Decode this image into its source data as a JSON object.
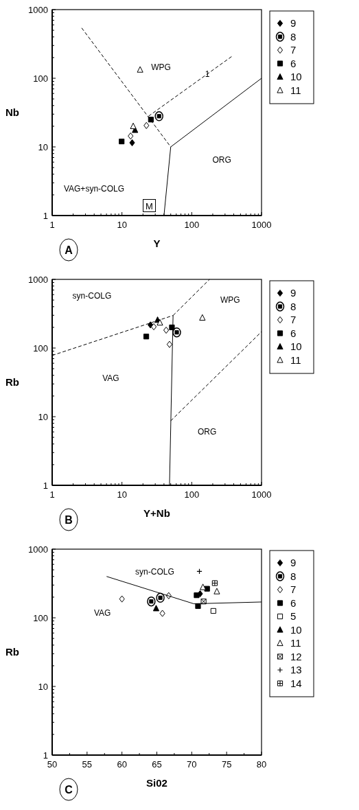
{
  "chart_data": [
    {
      "type": "scatter",
      "xlabel": "Y",
      "ylabel": "Nb",
      "log": "xy",
      "legend": "right",
      "xlim": [
        1,
        1000
      ],
      "ylim": [
        1,
        1000
      ],
      "xticks": [
        1,
        {
          "value": 2,
          "label": null
        },
        {
          "value": 3,
          "label": null
        },
        {
          "value": 4,
          "label": null
        },
        {
          "value": 5,
          "label": null
        },
        {
          "value": 6,
          "label": null
        },
        {
          "value": 7,
          "label": null
        },
        {
          "value": 8,
          "label": null
        },
        {
          "value": 9,
          "label": null
        },
        10,
        {
          "value": 20,
          "label": null
        },
        {
          "value": 30,
          "label": null
        },
        {
          "value": 40,
          "label": null
        },
        {
          "value": 50,
          "label": null
        },
        {
          "value": 60,
          "label": null
        },
        {
          "value": 70,
          "label": null
        },
        {
          "value": 80,
          "label": null
        },
        {
          "value": 90,
          "label": null
        },
        100,
        {
          "value": 200,
          "label": null
        },
        {
          "value": 300,
          "label": null
        },
        {
          "value": 400,
          "label": null
        },
        {
          "value": 500,
          "label": null
        },
        {
          "value": 600,
          "label": null
        },
        {
          "value": 700,
          "label": null
        },
        {
          "value": 800,
          "label": null
        },
        {
          "value": 900,
          "label": null
        },
        1000
      ],
      "yticks": [
        1,
        {
          "value": 2,
          "label": null
        },
        {
          "value": 3,
          "label": null
        },
        {
          "value": 4,
          "label": null
        },
        {
          "value": 5,
          "label": null
        },
        {
          "value": 6,
          "label": null
        },
        {
          "value": 7,
          "label": null
        },
        {
          "value": 8,
          "label": null
        },
        {
          "value": 9,
          "label": null
        },
        10,
        {
          "value": 20,
          "label": null
        },
        {
          "value": 30,
          "label": null
        },
        {
          "value": 40,
          "label": null
        },
        {
          "value": 50,
          "label": null
        },
        {
          "value": 60,
          "label": null
        },
        {
          "value": 70,
          "label": null
        },
        {
          "value": 80,
          "label": null
        },
        {
          "value": 90,
          "label": null
        },
        100,
        {
          "value": 200,
          "label": null
        },
        {
          "value": 300,
          "label": null
        },
        {
          "value": 400,
          "label": null
        },
        {
          "value": 500,
          "label": null
        },
        {
          "value": 600,
          "label": null
        },
        {
          "value": 700,
          "label": null
        },
        {
          "value": 800,
          "label": null
        },
        {
          "value": 900,
          "label": null
        },
        1000
      ],
      "series": [
        {
          "name": "9",
          "color": "#000000",
          "marker": "diamond",
          "x": [
            14
          ],
          "values": [
            11.5
          ]
        },
        {
          "name": "8",
          "color": "#000000",
          "marker": "circled-square",
          "x": [
            34
          ],
          "values": [
            28
          ]
        },
        {
          "name": "7",
          "color": "#000000",
          "marker": "diamond-open",
          "x": [
            13.3,
            22.4
          ],
          "values": [
            14.4,
            20.5
          ]
        },
        {
          "name": "6",
          "color": "#000000",
          "marker": "square",
          "x": [
            9.9,
            26
          ],
          "values": [
            12,
            25
          ]
        },
        {
          "name": "10",
          "color": "#000000",
          "marker": "triangle",
          "x": [
            15.4
          ],
          "values": [
            17.6
          ]
        },
        {
          "name": "11",
          "color": "#000000",
          "marker": "triangle-open",
          "x": [
            14.5,
            18.2
          ],
          "values": [
            20,
            133
          ]
        },
        {
          "type": "line",
          "color": "#000000",
          "line_style": "dashed",
          "x": [
            2.65,
            50
          ],
          "values": [
            540,
            10
          ]
        },
        {
          "type": "line",
          "color": "#000000",
          "line_style": "solid",
          "x": [
            40,
            50
          ],
          "values": [
            1,
            10
          ]
        },
        {
          "type": "line",
          "color": "#000000",
          "line_style": "solid",
          "x": [
            50,
            1000
          ],
          "values": [
            10,
            100
          ]
        },
        {
          "type": "line",
          "color": "#000000",
          "line_style": "dashed",
          "x": [
            24,
            380
          ],
          "values": [
            28,
            210
          ]
        }
      ],
      "annotations": [
        "WPG",
        "ORG",
        "VAG+syn-COLG",
        {
          "text": "1",
          "x": 167,
          "y": 116
        },
        "M",
        "A"
      ]
    },
    {
      "type": "scatter",
      "xlabel": "Y+Nb",
      "ylabel": "Rb",
      "log": "xy",
      "legend": "right",
      "xlim": [
        1,
        1000
      ],
      "ylim": [
        1,
        1000
      ],
      "xticks": [
        1,
        {
          "value": 2,
          "label": null
        },
        {
          "value": 3,
          "label": null
        },
        {
          "value": 4,
          "label": null
        },
        {
          "value": 5,
          "label": null
        },
        {
          "value": 6,
          "label": null
        },
        {
          "value": 7,
          "label": null
        },
        {
          "value": 8,
          "label": null
        },
        {
          "value": 9,
          "label": null
        },
        10,
        {
          "value": 20,
          "label": null
        },
        {
          "value": 30,
          "label": null
        },
        {
          "value": 40,
          "label": null
        },
        {
          "value": 50,
          "label": null
        },
        {
          "value": 60,
          "label": null
        },
        {
          "value": 70,
          "label": null
        },
        {
          "value": 80,
          "label": null
        },
        {
          "value": 90,
          "label": null
        },
        100,
        {
          "value": 200,
          "label": null
        },
        {
          "value": 300,
          "label": null
        },
        {
          "value": 400,
          "label": null
        },
        {
          "value": 500,
          "label": null
        },
        {
          "value": 600,
          "label": null
        },
        {
          "value": 700,
          "label": null
        },
        {
          "value": 800,
          "label": null
        },
        {
          "value": 900,
          "label": null
        },
        1000
      ],
      "yticks": [
        1,
        {
          "value": 2,
          "label": null
        },
        {
          "value": 3,
          "label": null
        },
        {
          "value": 4,
          "label": null
        },
        {
          "value": 5,
          "label": null
        },
        {
          "value": 6,
          "label": null
        },
        {
          "value": 7,
          "label": null
        },
        {
          "value": 8,
          "label": null
        },
        {
          "value": 9,
          "label": null
        },
        10,
        {
          "value": 20,
          "label": null
        },
        {
          "value": 30,
          "label": null
        },
        {
          "value": 40,
          "label": null
        },
        {
          "value": 50,
          "label": null
        },
        {
          "value": 60,
          "label": null
        },
        {
          "value": 70,
          "label": null
        },
        {
          "value": 80,
          "label": null
        },
        {
          "value": 90,
          "label": null
        },
        100,
        {
          "value": 200,
          "label": null
        },
        {
          "value": 300,
          "label": null
        },
        {
          "value": 400,
          "label": null
        },
        {
          "value": 500,
          "label": null
        },
        {
          "value": 600,
          "label": null
        },
        {
          "value": 700,
          "label": null
        },
        {
          "value": 800,
          "label": null
        },
        {
          "value": 900,
          "label": null
        },
        1000
      ],
      "series": [
        {
          "name": "9",
          "color": "#000000",
          "marker": "diamond",
          "x": [
            25.6
          ],
          "values": [
            217
          ]
        },
        {
          "name": "8",
          "color": "#000000",
          "marker": "circled-square",
          "x": [
            61
          ],
          "values": [
            169
          ]
        },
        {
          "name": "7",
          "color": "#000000",
          "marker": "diamond-open",
          "x": [
            28.6,
            43,
            48
          ],
          "values": [
            204,
            182,
            113
          ]
        },
        {
          "name": "6",
          "color": "#000000",
          "marker": "square",
          "x": [
            22.3,
            52
          ],
          "values": [
            147,
            200
          ]
        },
        {
          "name": "10",
          "color": "#000000",
          "marker": "triangle",
          "x": [
            32.4
          ],
          "values": [
            256
          ]
        },
        {
          "name": "11",
          "color": "#000000",
          "marker": "triangle-open",
          "x": [
            35,
            142
          ],
          "values": [
            234,
            276
          ]
        },
        {
          "type": "line",
          "color": "#000000",
          "line_style": "dashed",
          "x": [
            1,
            54
          ],
          "values": [
            78,
            298
          ]
        },
        {
          "type": "line",
          "color": "#000000",
          "line_style": "solid",
          "x": [
            48,
            54
          ],
          "values": [
            1,
            298
          ]
        },
        {
          "type": "line",
          "color": "#000000",
          "line_style": "dashed",
          "x": [
            54,
            180
          ],
          "values": [
            298,
            1000
          ]
        },
        {
          "type": "line",
          "color": "#000000",
          "line_style": "dashed",
          "x": [
            50,
            1000
          ],
          "values": [
            8.7,
            173
          ]
        }
      ],
      "annotations": [
        "syn-COLG",
        "WPG",
        "VAG",
        "ORG",
        "B"
      ]
    },
    {
      "type": "scatter",
      "xlabel": "Si02",
      "ylabel": "Rb",
      "log": "y",
      "legend": "right",
      "xlim": [
        50,
        80
      ],
      "ylim": [
        1,
        1000
      ],
      "xticks": [
        50,
        {
          "value": 52.5,
          "label": null
        },
        55,
        {
          "value": 57.5,
          "label": null
        },
        60,
        {
          "value": 62.5,
          "label": null
        },
        65,
        {
          "value": 67.5,
          "label": null
        },
        70,
        {
          "value": 72.5,
          "label": null
        },
        75,
        {
          "value": 77.5,
          "label": null
        },
        80
      ],
      "yticks": [
        1,
        {
          "value": 2,
          "label": null
        },
        {
          "value": 3,
          "label": null
        },
        {
          "value": 4,
          "label": null
        },
        {
          "value": 5,
          "label": null
        },
        {
          "value": 6,
          "label": null
        },
        {
          "value": 7,
          "label": null
        },
        {
          "value": 8,
          "label": null
        },
        {
          "value": 9,
          "label": null
        },
        10,
        {
          "value": 20,
          "label": null
        },
        {
          "value": 30,
          "label": null
        },
        {
          "value": 40,
          "label": null
        },
        {
          "value": 50,
          "label": null
        },
        {
          "value": 60,
          "label": null
        },
        {
          "value": 70,
          "label": null
        },
        {
          "value": 80,
          "label": null
        },
        {
          "value": 90,
          "label": null
        },
        100,
        {
          "value": 200,
          "label": null
        },
        {
          "value": 300,
          "label": null
        },
        {
          "value": 400,
          "label": null
        },
        {
          "value": 500,
          "label": null
        },
        {
          "value": 600,
          "label": null
        },
        {
          "value": 700,
          "label": null
        },
        {
          "value": 800,
          "label": null
        },
        {
          "value": 900,
          "label": null
        },
        1000
      ],
      "series": [
        {
          "name": "9",
          "color": "#000000",
          "marker": "diamond",
          "x": [
            71.2
          ],
          "values": [
            224
          ]
        },
        {
          "name": "8",
          "color": "#000000",
          "marker": "circled-square",
          "x": [
            64.2,
            65.5
          ],
          "values": [
            173,
            196
          ]
        },
        {
          "name": "7",
          "color": "#000000",
          "marker": "diamond-open",
          "x": [
            60,
            66.7,
            65.8
          ],
          "values": [
            188,
            210,
            116
          ]
        },
        {
          "name": "6",
          "color": "#000000",
          "marker": "square",
          "x": [
            70.7,
            72.2,
            70.9
          ],
          "values": [
            213,
            265,
            148
          ]
        },
        {
          "name": "5",
          "color": "#000000",
          "marker": "square-open",
          "x": [
            73.1
          ],
          "values": [
            126
          ]
        },
        {
          "name": "10",
          "color": "#000000",
          "marker": "triangle",
          "x": [
            64.9
          ],
          "values": [
            137
          ]
        },
        {
          "name": "11",
          "color": "#000000",
          "marker": "triangle-open",
          "x": [
            71.6,
            73.6
          ],
          "values": [
            279,
            242
          ]
        },
        {
          "name": "12",
          "color": "#000000",
          "marker": "cross-diagonal-open",
          "x": [
            71.7
          ],
          "values": [
            173
          ]
        },
        {
          "name": "13",
          "color": "#000000",
          "marker": "cross",
          "x": [
            71.1
          ],
          "values": [
            475
          ]
        },
        {
          "name": "14",
          "color": "#000000",
          "marker": "cross-open",
          "x": [
            73.3
          ],
          "values": [
            320
          ]
        },
        {
          "type": "line",
          "color": "#000000",
          "line_style": "solid",
          "x": [
            57.8,
            70.3,
            80
          ],
          "values": [
            400,
            160,
            170
          ]
        }
      ],
      "annotations": [
        "syn-COLG",
        "VAG",
        "C"
      ]
    }
  ]
}
